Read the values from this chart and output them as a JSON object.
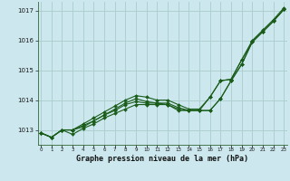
{
  "background_color": "#cce8ee",
  "grid_color": "#aacccc",
  "line_color": "#1a5c1a",
  "x_values": [
    0,
    1,
    2,
    3,
    4,
    5,
    6,
    7,
    8,
    9,
    10,
    11,
    12,
    13,
    14,
    15,
    16,
    17,
    18,
    19,
    20,
    21,
    22,
    23
  ],
  "series": [
    [
      1012.9,
      1012.75,
      1013.0,
      1012.85,
      1013.05,
      1013.2,
      1013.4,
      1013.55,
      1013.7,
      1013.85,
      1013.85,
      1013.85,
      1013.85,
      1013.65,
      1013.65,
      1013.65,
      1013.65,
      1014.05,
      1014.65,
      1015.2,
      1015.95,
      1016.3,
      1016.65,
      1017.05
    ],
    [
      1012.9,
      1012.75,
      1013.0,
      1013.0,
      1013.1,
      1013.3,
      1013.5,
      1013.65,
      1013.85,
      1013.95,
      1013.9,
      1013.9,
      1013.85,
      1013.7,
      1013.65,
      1013.65,
      1013.65,
      1014.05,
      1014.65,
      1015.2,
      1015.95,
      1016.3,
      1016.65,
      1017.05
    ],
    [
      1012.9,
      1012.75,
      1013.0,
      1013.0,
      1013.15,
      1013.3,
      1013.5,
      1013.7,
      1013.9,
      1014.05,
      1013.95,
      1013.9,
      1013.9,
      1013.75,
      1013.65,
      1013.65,
      1014.1,
      1014.65,
      1014.7,
      1015.35,
      1015.95,
      1016.3,
      1016.65,
      1017.05
    ],
    [
      1012.9,
      1012.75,
      1013.0,
      1013.0,
      1013.2,
      1013.4,
      1013.6,
      1013.8,
      1014.0,
      1014.15,
      1014.1,
      1014.0,
      1014.0,
      1013.85,
      1013.7,
      1013.7,
      1014.1,
      1014.65,
      1014.7,
      1015.35,
      1016.0,
      1016.35,
      1016.7,
      1017.1
    ]
  ],
  "ylim": [
    1012.5,
    1017.3
  ],
  "yticks": [
    1013,
    1014,
    1015,
    1016,
    1017
  ],
  "xlabel": "Graphe pression niveau de la mer (hPa)",
  "xtick_labels": [
    "0",
    "1",
    "2",
    "3",
    "4",
    "5",
    "6",
    "7",
    "8",
    "9",
    "10",
    "11",
    "12",
    "13",
    "14",
    "15",
    "16",
    "17",
    "18",
    "19",
    "20",
    "21",
    "22",
    "23"
  ]
}
